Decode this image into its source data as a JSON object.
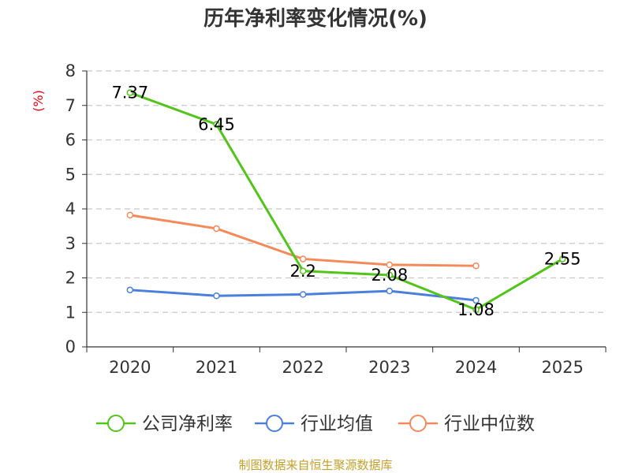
{
  "chart_data": {
    "type": "line",
    "title": "历年净利率变化情况(%)",
    "xlabel": "",
    "ylabel": "(%)",
    "ylim": [
      0,
      8
    ],
    "yticks": [
      0,
      1,
      2,
      3,
      4,
      5,
      6,
      7,
      8
    ],
    "categories": [
      "2020",
      "2021",
      "2022",
      "2023",
      "2024",
      "2025"
    ],
    "grid": true,
    "legend_position": "bottom",
    "series": [
      {
        "name": "公司净利率",
        "color": "#52c41a",
        "values": [
          7.37,
          6.45,
          2.2,
          2.08,
          1.08,
          2.55
        ],
        "labels": [
          "7.37",
          "6.45",
          "2.2",
          "2.08",
          "1.08",
          "2.55"
        ]
      },
      {
        "name": "行业均值",
        "color": "#4a7fdc",
        "values": [
          1.65,
          1.48,
          1.52,
          1.62,
          1.35,
          null
        ],
        "labels": null
      },
      {
        "name": "行业中位数",
        "color": "#f4895a",
        "values": [
          3.82,
          3.43,
          2.55,
          2.38,
          2.35,
          null
        ],
        "labels": null
      }
    ],
    "source": "制图数据来自恒生聚源数据库"
  }
}
